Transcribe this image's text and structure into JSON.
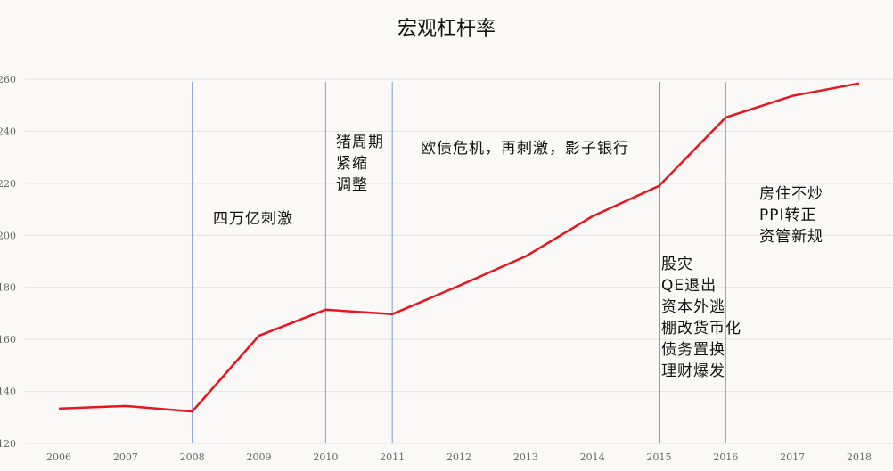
{
  "chart_data": {
    "type": "line",
    "title": "宏观杠杆率",
    "xlabel": "",
    "ylabel": "",
    "categories": [
      "2006",
      "2007",
      "2008",
      "2009",
      "2010",
      "2011",
      "2012",
      "2013",
      "2014",
      "2015",
      "2016",
      "2017",
      "2018"
    ],
    "series": [
      {
        "name": "宏观杠杆率",
        "color": "#e8141e",
        "values": [
          133.4,
          134.4,
          132.3,
          161.4,
          171.4,
          169.7,
          180.6,
          191.9,
          207.3,
          219.0,
          245.3,
          253.6,
          258.4
        ]
      }
    ],
    "ylim": [
      120,
      260
    ],
    "yticks": [
      "120",
      "140",
      "160",
      "180",
      "200",
      "220",
      "240",
      "260"
    ],
    "grid": true,
    "legend": "none",
    "vertical_markers": [
      "2008",
      "2010",
      "2011",
      "2015",
      "2016"
    ],
    "annotations": [
      {
        "id": "a1",
        "text": "四万亿刺激"
      },
      {
        "id": "a2",
        "text": "猪周期\n紧缩\n调整"
      },
      {
        "id": "a3",
        "text": "欧债危机，再刺激，影子银行"
      },
      {
        "id": "a4",
        "text": "股灾\nQE退出\n资本外逃\n棚改货币化\n债务置换\n理财爆发"
      },
      {
        "id": "a5",
        "text": "房住不炒\nPPI转正\n资管新规"
      }
    ]
  }
}
